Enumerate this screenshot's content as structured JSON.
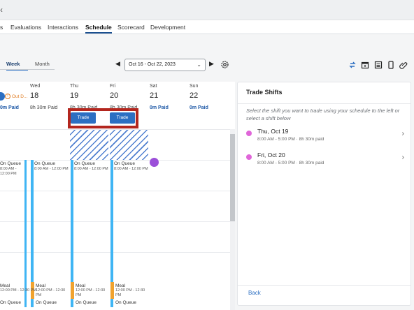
{
  "nav": {
    "back_glyph": "‹",
    "tabs": [
      "s",
      "Evaluations",
      "Interactions",
      "Schedule",
      "Scorecard",
      "Development"
    ]
  },
  "toolbar": {
    "week_label": "Week",
    "month_label": "Month",
    "date_range": "Oct 16 - Oct 22, 2023"
  },
  "schedule": {
    "days": [
      {
        "name": "",
        "num": "",
        "hours": "",
        "paid": "0m Paid",
        "out_label": "Out D..."
      },
      {
        "name": "Wed",
        "num": "18",
        "hours": "8h 30m Paid",
        "paid": ""
      },
      {
        "name": "Thu",
        "num": "19",
        "hours": "8h 30m Paid",
        "paid": ""
      },
      {
        "name": "Fri",
        "num": "20",
        "hours": "8h 30m Paid",
        "paid": ""
      },
      {
        "name": "Sat",
        "num": "21",
        "hours": "",
        "paid": "0m Paid"
      },
      {
        "name": "Sun",
        "num": "22",
        "hours": "",
        "paid": "0m Paid"
      }
    ],
    "trade_label": "Trade",
    "shift_label": "On Queue",
    "shift_time": "8:00 AM - 12:00 PM",
    "meal_label": "Meal",
    "meal_time": "12:00 PM - 12:30 PM",
    "on_queue_2": "On Queue"
  },
  "panel": {
    "title": "Trade Shifts",
    "instruction": "Select the shift you want to trade using your schedule to the left or select a shift below",
    "shifts": [
      {
        "day": "Thu, Oct 19",
        "time": "8:00 AM - 5:00 PM · 8h 30m paid"
      },
      {
        "day": "Fri, Oct 20",
        "time": "8:00 AM - 5:00 PM · 8h 30m paid"
      }
    ],
    "back_label": "Back"
  },
  "colors": {
    "accent": "#2c6fc2",
    "shift_bar": "#3fb5f4",
    "meal": "#f0a22e",
    "highlight_box": "#b3261e",
    "shift_dot": "#e066d9"
  }
}
